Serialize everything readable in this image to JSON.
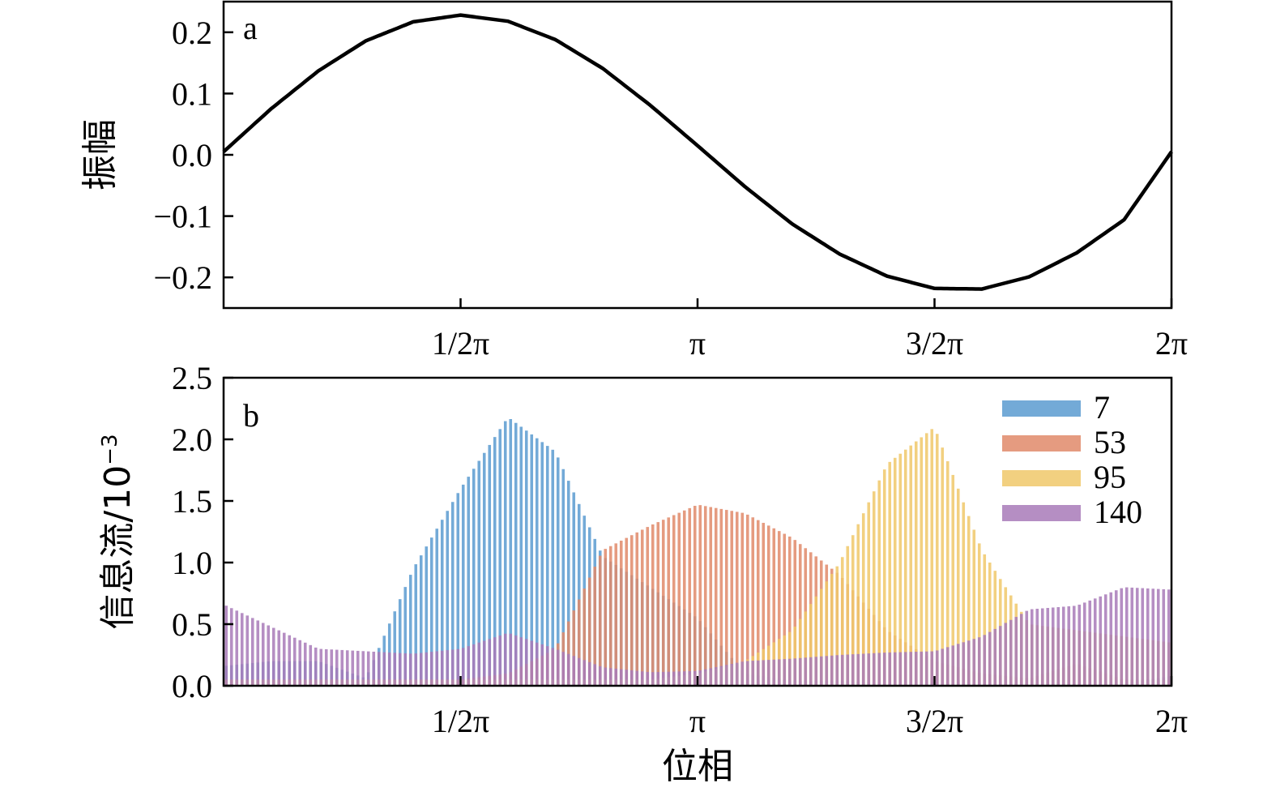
{
  "chart_data": [
    {
      "type": "line",
      "panel_label": "a",
      "ylabel": "振幅",
      "xlabel": "",
      "x_tick_labels": [
        "1/2π",
        "π",
        "3/2π",
        "2π"
      ],
      "x_tick_values": [
        1.5708,
        3.1416,
        4.7124,
        6.2832
      ],
      "y_tick_labels": [
        "0.2",
        "0.1",
        "0.0",
        "−0.1",
        "−0.2"
      ],
      "y_tick_values": [
        0.2,
        0.1,
        0.0,
        -0.1,
        -0.2
      ],
      "xlim": [
        0,
        6.2832
      ],
      "ylim": [
        -0.25,
        0.25
      ],
      "grid": false,
      "series": [
        {
          "color": "#000000",
          "x": [
            0.0,
            0.3142,
            0.6283,
            0.9425,
            1.2566,
            1.5708,
            1.885,
            2.1991,
            2.5133,
            2.8274,
            3.1416,
            3.4558,
            3.7699,
            4.0841,
            4.3982,
            4.7124,
            5.0265,
            5.3407,
            5.6549,
            5.969,
            6.2832
          ],
          "y": [
            0.005,
            0.075,
            0.137,
            0.186,
            0.217,
            0.228,
            0.218,
            0.188,
            0.141,
            0.081,
            0.015,
            -0.052,
            -0.113,
            -0.162,
            -0.198,
            -0.218,
            -0.219,
            -0.199,
            -0.16,
            -0.106,
            0.005
          ]
        }
      ]
    },
    {
      "type": "bar",
      "panel_label": "b",
      "ylabel": "信息流/10",
      "ylabel_exponent": "−3",
      "xlabel": "位相",
      "x_tick_labels": [
        "1/2π",
        "π",
        "3/2π",
        "2π"
      ],
      "x_tick_values": [
        1.5708,
        3.1416,
        4.7124,
        6.2832
      ],
      "y_tick_labels": [
        "2.5",
        "2.0",
        "1.5",
        "1.0",
        "0.5",
        "0.0"
      ],
      "y_tick_values": [
        2.5,
        2.0,
        1.5,
        1.0,
        0.5,
        0.0
      ],
      "xlim": [
        0,
        6.2832
      ],
      "ylim": [
        0,
        2.5
      ],
      "grid": false,
      "legend_position": "top-right",
      "x": [
        0.0,
        0.3142,
        0.6283,
        0.9425,
        1.2566,
        1.5708,
        1.885,
        2.1991,
        2.5133,
        2.8274,
        3.1416,
        3.4558,
        3.7699,
        4.0841,
        4.3982,
        4.7124,
        5.0265,
        5.3407,
        5.6549,
        5.969,
        6.2832
      ],
      "series": [
        {
          "name": "7",
          "color": "#5b9bd0",
          "values": [
            0.16,
            0.2,
            0.2,
            0.06,
            0.95,
            1.6,
            2.18,
            1.9,
            1.05,
            0.8,
            0.55,
            0.1,
            0.04,
            0.04,
            0.02,
            0.02,
            0.02,
            0.02,
            0.02,
            0.02,
            0.08
          ]
        },
        {
          "name": "53",
          "color": "#e0896a",
          "values": [
            0.05,
            0.05,
            0.05,
            0.05,
            0.05,
            0.05,
            0.1,
            0.3,
            1.1,
            1.3,
            1.47,
            1.4,
            1.2,
            0.9,
            0.45,
            0.2,
            0.1,
            0.06,
            0.18,
            0.05,
            0.05
          ]
        },
        {
          "name": "95",
          "color": "#f0c86a",
          "values": [
            0.05,
            0.05,
            0.05,
            0.05,
            0.05,
            0.05,
            0.05,
            0.05,
            0.05,
            0.05,
            0.1,
            0.2,
            0.45,
            1.0,
            1.8,
            2.1,
            1.1,
            0.5,
            0.45,
            0.4,
            0.35
          ]
        },
        {
          "name": "140",
          "color": "#a87ab8",
          "values": [
            0.66,
            0.48,
            0.3,
            0.28,
            0.26,
            0.3,
            0.43,
            0.3,
            0.15,
            0.11,
            0.12,
            0.2,
            0.22,
            0.25,
            0.27,
            0.28,
            0.4,
            0.62,
            0.65,
            0.8,
            0.78
          ]
        }
      ]
    }
  ]
}
